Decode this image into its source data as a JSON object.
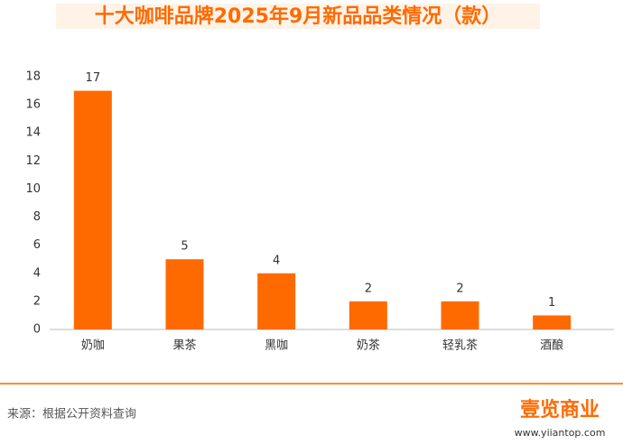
{
  "chart_data": {
    "type": "bar",
    "title": "十大咖啡品牌2025年9月新品品类情况（款）",
    "categories": [
      "奶咖",
      "果茶",
      "黑咖",
      "奶茶",
      "轻乳茶",
      "酒酿"
    ],
    "values": [
      17,
      5,
      4,
      2,
      2,
      1
    ],
    "color": "#ff6a00",
    "ylim": [
      0,
      18
    ],
    "yticks": [
      0,
      2,
      4,
      6,
      8,
      10,
      12,
      14,
      16,
      18
    ],
    "grid": false
  },
  "footer": {
    "source": "来源：根据公开资料查询",
    "brand": "壹览商业",
    "url": "www.yiiantop.com"
  }
}
